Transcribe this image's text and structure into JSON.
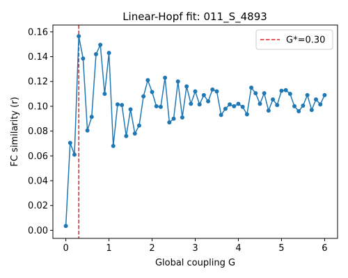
{
  "chart_data": {
    "type": "line",
    "title": "Linear-Hopf fit: 011_S_4893",
    "xlabel": "Global coupling G",
    "ylabel": "FC similarity (r)",
    "xlim": [
      -0.3,
      6.3
    ],
    "ylim": [
      -0.0065,
      0.1655
    ],
    "xticks": [
      0,
      1,
      2,
      3,
      4,
      5,
      6
    ],
    "xtick_labels": [
      "0",
      "1",
      "2",
      "3",
      "4",
      "5",
      "6"
    ],
    "yticks": [
      0.0,
      0.02,
      0.04,
      0.06,
      0.08,
      0.1,
      0.12,
      0.14,
      0.16
    ],
    "ytick_labels": [
      "0.00",
      "0.02",
      "0.04",
      "0.06",
      "0.08",
      "0.10",
      "0.12",
      "0.14",
      "0.16"
    ],
    "grid": false,
    "legend_position": "top-right",
    "series": [
      {
        "color": "#1f77b4",
        "x": [
          0.0,
          0.1,
          0.2,
          0.3,
          0.4,
          0.5,
          0.6,
          0.7,
          0.8,
          0.9,
          1.0,
          1.1,
          1.2,
          1.3,
          1.4,
          1.5,
          1.6,
          1.7,
          1.8,
          1.9,
          2.0,
          2.1,
          2.2,
          2.3,
          2.4,
          2.5,
          2.6,
          2.7,
          2.8,
          2.9,
          3.0,
          3.1,
          3.2,
          3.3,
          3.4,
          3.5,
          3.6,
          3.7,
          3.8,
          3.9,
          4.0,
          4.1,
          4.2,
          4.3,
          4.4,
          4.5,
          4.6,
          4.7,
          4.8,
          4.9,
          5.0,
          5.1,
          5.2,
          5.3,
          5.4,
          5.5,
          5.6,
          5.7,
          5.8,
          5.9,
          6.0
        ],
        "y": [
          0.0035,
          0.0705,
          0.061,
          0.1565,
          0.1385,
          0.0805,
          0.0915,
          0.142,
          0.1495,
          0.11,
          0.143,
          0.068,
          0.1015,
          0.101,
          0.076,
          0.0975,
          0.078,
          0.0845,
          0.108,
          0.121,
          0.1115,
          0.1,
          0.0995,
          0.123,
          0.087,
          0.09,
          0.12,
          0.091,
          0.116,
          0.102,
          0.112,
          0.1015,
          0.109,
          0.104,
          0.1135,
          0.112,
          0.093,
          0.098,
          0.1015,
          0.1,
          0.102,
          0.0995,
          0.0935,
          0.115,
          0.1105,
          0.102,
          0.1105,
          0.0965,
          0.1055,
          0.101,
          0.1125,
          0.113,
          0.11,
          0.1,
          0.096,
          0.1005,
          0.109,
          0.097,
          0.1055,
          0.1015,
          0.109
        ]
      }
    ],
    "reference_line": {
      "orientation": "vertical",
      "x": 0.3,
      "color": "#d62728",
      "style": "dashed",
      "label": "G*=0.30"
    }
  }
}
